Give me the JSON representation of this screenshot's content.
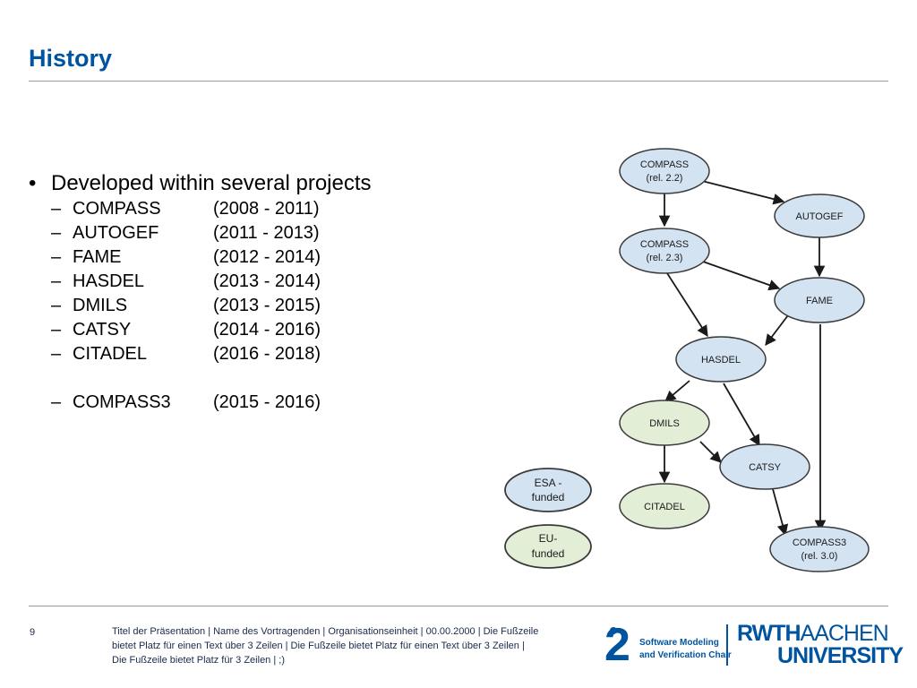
{
  "slide": {
    "title": "History",
    "bullet": "Developed within several projects",
    "projects": [
      {
        "name": "COMPASS",
        "years": "(2008 - 2011)"
      },
      {
        "name": "AUTOGEF",
        "years": "(2011 - 2013)"
      },
      {
        "name": "FAME",
        "years": "(2012 - 2014)"
      },
      {
        "name": "HASDEL",
        "years": "(2013 - 2014)"
      },
      {
        "name": "DMILS",
        "years": "(2013 - 2015)"
      },
      {
        "name": "CATSY",
        "years": "(2014 - 2016)"
      },
      {
        "name": "CITADEL",
        "years": "(2016 - 2018)"
      }
    ],
    "extra_project": {
      "name": "COMPASS3",
      "years": "(2015 - 2016)"
    }
  },
  "diagram": {
    "nodes": {
      "compass22": {
        "l1": "COMPASS",
        "l2": "(rel. 2.2)"
      },
      "autogef": {
        "l1": "AUTOGEF"
      },
      "compass23": {
        "l1": "COMPASS",
        "l2": "(rel. 2.3)"
      },
      "fame": {
        "l1": "FAME"
      },
      "hasdel": {
        "l1": "HASDEL"
      },
      "dmils": {
        "l1": "DMILS"
      },
      "catsy": {
        "l1": "CATSY"
      },
      "citadel": {
        "l1": "CITADEL"
      },
      "compass3": {
        "l1": "COMPASS3",
        "l2": "(rel. 3.0)"
      }
    },
    "legend": {
      "esa": {
        "l1": "ESA -",
        "l2": "funded"
      },
      "eu": {
        "l1": "EU-",
        "l2": "funded"
      }
    },
    "colors": {
      "blue_fill": "#d4e3f2",
      "green_fill": "#e2efd6",
      "stroke": "#3a3a3a",
      "title": "#00539f"
    }
  },
  "footer": {
    "page_number": "9",
    "text": "Titel der Präsentation | Name des Vortragenden | Organisationseinheit | 00.00.2000 | Die Fußzeile bietet Platz für einen Text über 3 Zeilen | Die Fußzeile bietet Platz für einen Text über 3 Zeilen | Die Fußzeile bietet Platz für 3 Zeilen | ;)",
    "logo_i2": {
      "mark": "2",
      "line1": "Software Modeling",
      "line2": "and Verification Chair"
    },
    "logo_rwth": {
      "part1": "RWTH",
      "part2": "AACHEN",
      "line2": "UNIVERSITY"
    }
  }
}
